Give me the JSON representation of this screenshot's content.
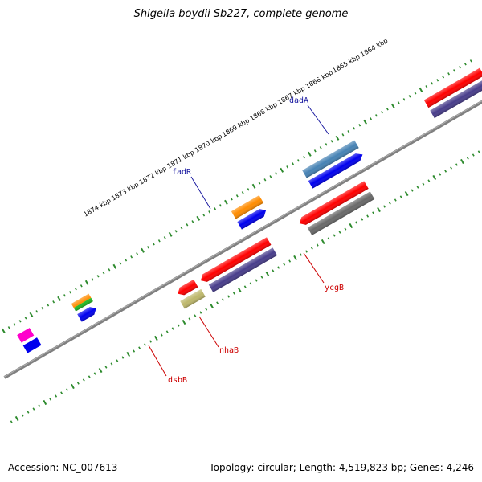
{
  "title": "Shigella boydii Sb227, complete genome",
  "footer": {
    "accession": "Accession: NC_007613",
    "topology": "Topology: circular; Length: 4,519,823 bp; Genes: 4,246"
  },
  "ticks": [
    "1864 kbp",
    "1865 kbp",
    "1866 kbp",
    "1867 kbp",
    "1868 kbp",
    "1869 kbp",
    "1870 kbp",
    "1871 kbp",
    "1872 kbp",
    "1873 kbp",
    "1874 kbp"
  ],
  "genes": {
    "dadA": "dadA",
    "fadR": "fadR",
    "ycgB": "ycgB",
    "nhaB": "nhaB",
    "dsbB": "dsbB"
  },
  "colors": {
    "backbone": "#808080",
    "tick": "#2e8b2e",
    "forward_label": "#1a1aa0",
    "reverse_label": "#cc0000",
    "red": "#ff0000",
    "blue": "#0000ee",
    "steelblue": "#4682b4",
    "orange": "#ff8c00",
    "slate": "#483d8b",
    "gray": "#696969",
    "khaki": "#bdb76b",
    "green": "#22bb22",
    "magenta": "#ff00cc"
  }
}
